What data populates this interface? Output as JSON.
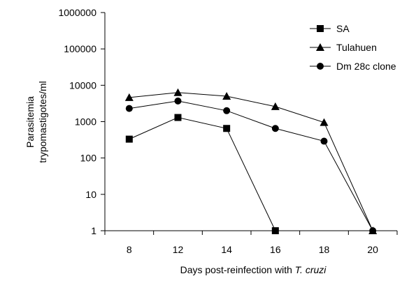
{
  "chart_data": {
    "type": "line",
    "x": [
      8,
      12,
      14,
      16,
      18,
      20
    ],
    "x_tick_labels": [
      "8",
      "12",
      "14",
      "16",
      "18",
      "20"
    ],
    "xlabel_prefix": "Days post-reinfection with ",
    "xlabel_italic": "T. cruzi",
    "ylabel_line1": "Parasitemia",
    "ylabel_line2": "trypomastigotes/ml",
    "y_scale": "log",
    "ylim": [
      1,
      1000000
    ],
    "y_tick_labels": [
      "1",
      "10",
      "100",
      "1000",
      "10000",
      "100000",
      "1000000"
    ],
    "grid": false,
    "legend_position": "top-right",
    "series": [
      {
        "name": "SA",
        "marker": "square",
        "x": [
          8,
          12,
          14,
          16
        ],
        "values": [
          330,
          1300,
          650,
          1
        ]
      },
      {
        "name": "Tulahuen",
        "marker": "triangle",
        "x": [
          8,
          12,
          14,
          16,
          18,
          20
        ],
        "values": [
          4600,
          6300,
          5000,
          2600,
          950,
          1
        ]
      },
      {
        "name": "Dm 28c clone",
        "marker": "circle",
        "x": [
          8,
          12,
          14,
          16,
          18,
          20
        ],
        "values": [
          2300,
          3700,
          2000,
          650,
          290,
          1
        ]
      }
    ],
    "color": "#000000"
  }
}
